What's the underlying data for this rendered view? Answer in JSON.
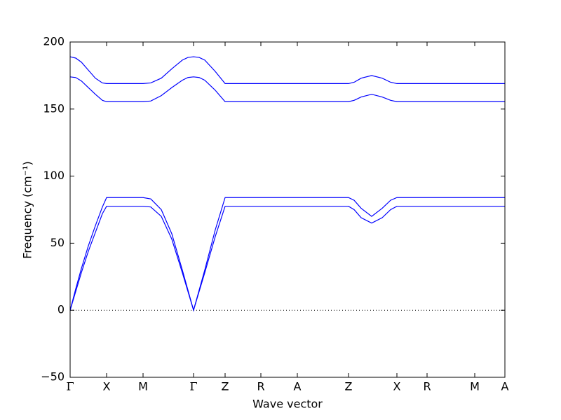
{
  "chart_data": {
    "type": "line",
    "xlabel": "Wave vector",
    "ylabel": "Frequency (cm⁻¹)",
    "x": [
      0,
      8,
      16,
      26,
      36,
      46,
      52,
      78,
      104,
      115,
      130,
      145,
      160,
      168,
      176,
      184,
      192,
      207,
      221,
      272,
      324,
      397,
      405,
      415,
      430,
      445,
      457,
      466,
      509,
      577,
      620
    ],
    "series": [
      {
        "color": "#0000ff",
        "values": [
          189,
          188,
          185,
          179,
          173,
          169.5,
          169,
          169,
          169,
          169.5,
          173,
          180,
          186.5,
          188.5,
          189,
          188.5,
          186.5,
          178,
          169,
          169,
          169,
          169,
          170,
          173,
          175,
          173,
          170,
          169,
          169,
          169,
          169
        ]
      },
      {
        "color": "#0000ff",
        "values": [
          174,
          173.5,
          171,
          166,
          161,
          156.5,
          155.5,
          155.5,
          155.5,
          156,
          160,
          166,
          171.5,
          173.5,
          174,
          173.5,
          171.5,
          164,
          155.5,
          155.5,
          155.5,
          155.5,
          156.5,
          159,
          161,
          159,
          156.5,
          155.5,
          155.5,
          155.5,
          155.5
        ]
      },
      {
        "color": "#0000ff",
        "values": [
          0,
          16,
          31,
          48,
          63,
          77,
          84,
          84,
          84,
          83,
          75,
          57,
          30,
          15,
          0,
          15,
          30,
          60,
          84,
          84,
          84,
          84,
          82,
          76,
          70,
          76,
          82,
          84,
          84,
          84,
          84
        ]
      },
      {
        "color": "#0000ff",
        "values": [
          0,
          14,
          28,
          44,
          58,
          72,
          77.5,
          77.5,
          77.5,
          77,
          70,
          53,
          28,
          14,
          0,
          14,
          28,
          55,
          77.5,
          77.5,
          77.5,
          77.5,
          75,
          69,
          65,
          69,
          75,
          77.5,
          77.5,
          77.5,
          77.5
        ]
      }
    ],
    "xlim": [
      0,
      620
    ],
    "xticks": [
      {
        "value": 0,
        "label": "Γ"
      },
      {
        "value": 52,
        "label": "X"
      },
      {
        "value": 104,
        "label": "M"
      },
      {
        "value": 176,
        "label": "Γ"
      },
      {
        "value": 221,
        "label": "Z"
      },
      {
        "value": 272,
        "label": "R"
      },
      {
        "value": 324,
        "label": "A"
      },
      {
        "value": 397,
        "label": "Z"
      },
      {
        "value": 466,
        "label": "X"
      },
      {
        "value": 509,
        "label": "R"
      },
      {
        "value": 577,
        "label": "M"
      },
      {
        "value": 620,
        "label": "A"
      }
    ],
    "ylim": [
      -50,
      200
    ],
    "yticks": [
      {
        "value": -50,
        "label": "−50"
      },
      0,
      50,
      100,
      150,
      200
    ],
    "reference_line": 0,
    "grid": false
  }
}
